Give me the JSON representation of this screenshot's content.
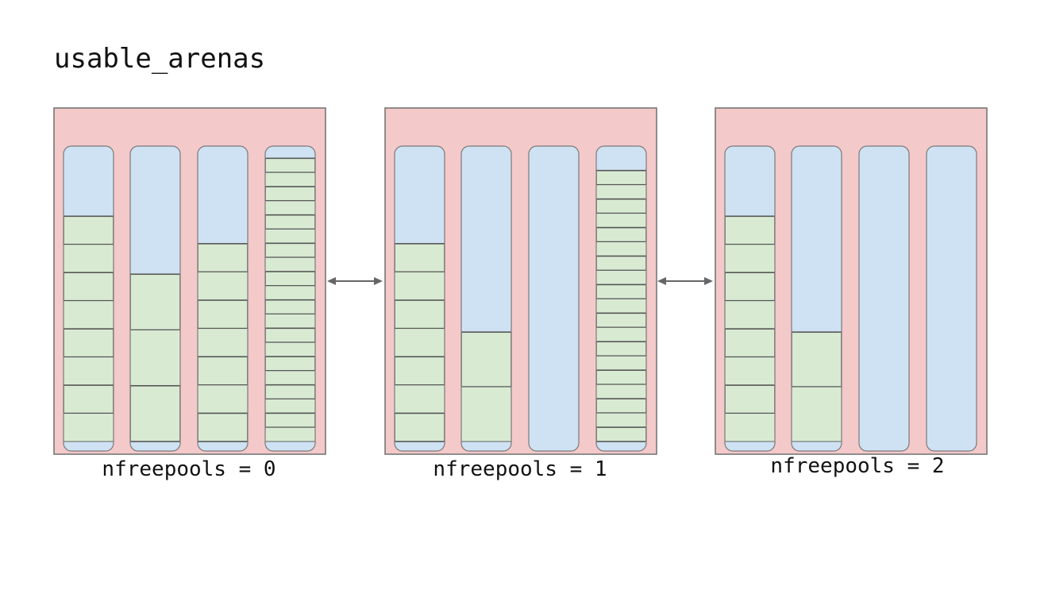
{
  "diagram": {
    "title": "usable_arenas",
    "colors": {
      "arena_fill": "#f4c9c9",
      "arena_border": "#6f6f6f",
      "free_space": "#cfe2f3",
      "used_block": "#d9ead3",
      "block_line": "#555555",
      "arrow": "#666666"
    },
    "arenas": [
      {
        "label": "nfreepools = 0",
        "pools": [
          {
            "free_fraction": 0.23,
            "used_blocks": 8
          },
          {
            "free_fraction": 0.42,
            "used_blocks": 3
          },
          {
            "free_fraction": 0.32,
            "used_blocks": 7
          },
          {
            "free_fraction": 0.04,
            "used_blocks": 20
          }
        ]
      },
      {
        "label": "nfreepools = 1",
        "pools": [
          {
            "free_fraction": 0.32,
            "used_blocks": 7
          },
          {
            "free_fraction": 0.61,
            "used_blocks": 2
          },
          {
            "free_fraction": 1.0,
            "used_blocks": 0
          },
          {
            "free_fraction": 0.08,
            "used_blocks": 19
          }
        ]
      },
      {
        "label": "nfreepools = 2",
        "pools": [
          {
            "free_fraction": 0.23,
            "used_blocks": 8
          },
          {
            "free_fraction": 0.61,
            "used_blocks": 2
          },
          {
            "free_fraction": 1.0,
            "used_blocks": 0
          },
          {
            "free_fraction": 1.0,
            "used_blocks": 0
          }
        ]
      }
    ],
    "links": [
      {
        "from": "nfreepools = 0",
        "to": "nfreepools = 1",
        "type": "bidirectional"
      },
      {
        "from": "nfreepools = 1",
        "to": "nfreepools = 2",
        "type": "bidirectional"
      }
    ]
  }
}
